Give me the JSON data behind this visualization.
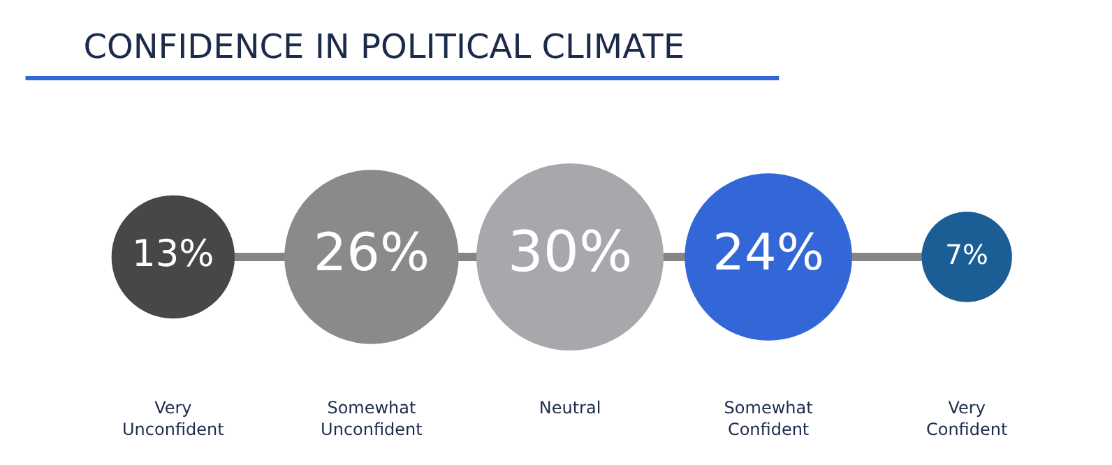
{
  "chart_data": {
    "type": "other",
    "title": "CONFIDENCE IN POLITICAL CLIMATE",
    "categories": [
      "Very Unconfident",
      "Somewhat Unconfident",
      "Neutral",
      "Somewhat Confident",
      "Very Confident"
    ],
    "values": [
      13,
      26,
      30,
      24,
      7
    ],
    "value_labels": [
      "13%",
      "26%",
      "30%",
      "24%",
      "7%"
    ],
    "colors": [
      "#474749",
      "#8a8a8c",
      "#a7a8ab",
      "#3366d6",
      "#1b5e96"
    ]
  }
}
